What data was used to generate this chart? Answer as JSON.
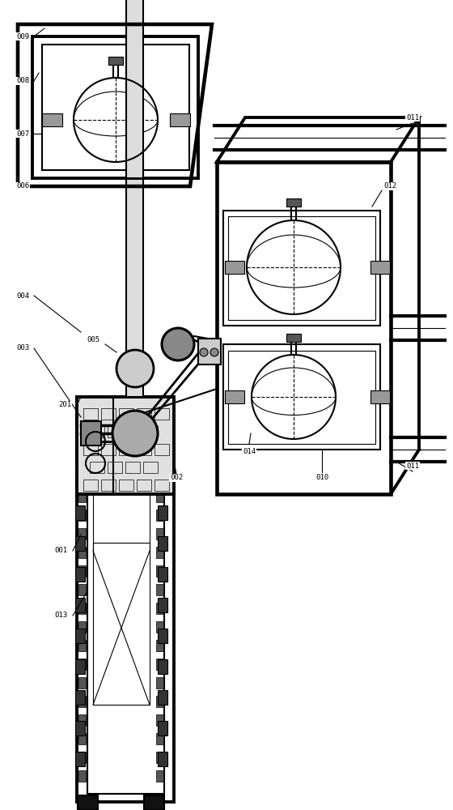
{
  "bg_color": "#ffffff",
  "lc": "#000000",
  "tlw": 2.8,
  "mlw": 1.5,
  "slw": 0.8,
  "fs": 6.5
}
